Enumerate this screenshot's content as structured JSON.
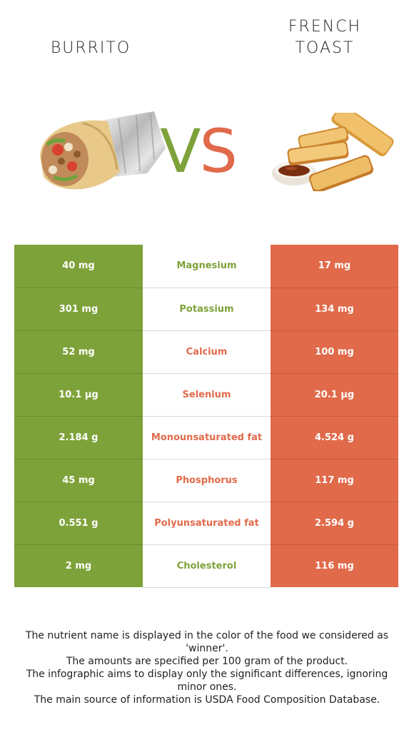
{
  "header": {
    "left_food": "BURRITO",
    "right_food_line1": "FRENCH",
    "right_food_line2": "TOAST",
    "vs_v": "V",
    "vs_s": "S"
  },
  "colors": {
    "left_accent": "#7ea23a",
    "right_accent": "#e06a4a"
  },
  "rows": [
    {
      "nutrient": "Magnesium",
      "left": "40 mg",
      "right": "17 mg",
      "winner": "left"
    },
    {
      "nutrient": "Potassium",
      "left": "301 mg",
      "right": "134 mg",
      "winner": "left"
    },
    {
      "nutrient": "Calcium",
      "left": "52 mg",
      "right": "100 mg",
      "winner": "right"
    },
    {
      "nutrient": "Selenium",
      "left": "10.1 µg",
      "right": "20.1 µg",
      "winner": "right"
    },
    {
      "nutrient": "Monounsaturated fat",
      "left": "2.184 g",
      "right": "4.524 g",
      "winner": "right"
    },
    {
      "nutrient": "Phosphorus",
      "left": "45 mg",
      "right": "117 mg",
      "winner": "right"
    },
    {
      "nutrient": "Polyunsaturated fat",
      "left": "0.551 g",
      "right": "2.594 g",
      "winner": "right"
    },
    {
      "nutrient": "Cholesterol",
      "left": "2 mg",
      "right": "116 mg",
      "winner": "left"
    }
  ],
  "footer": {
    "line1": "The nutrient name is displayed in the color of the food we considered as 'winner'.",
    "line2": "The amounts are specified per 100 gram of the product.",
    "line3": "The infographic aims to display only the significant differences, ignoring minor ones.",
    "line4": "The main source of information is USDA Food Composition Database."
  }
}
